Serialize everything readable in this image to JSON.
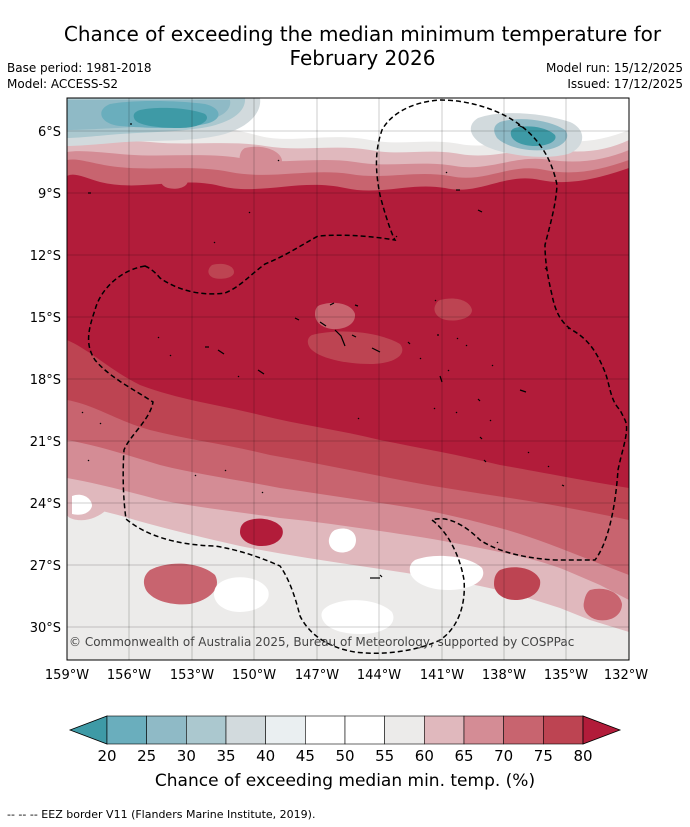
{
  "title_line1": "Chance of exceeding the median minimum temperature for",
  "title_line2": "February 2026",
  "base_period": "Base period: 1981-2018",
  "model": "Model: ACCESS-S2",
  "model_run": "Model run: 15/12/2025",
  "issued": "Issued: 17/12/2025",
  "copyright": "© Commonwealth of Australia 2025, Bureau of Meteorology, supported by COSPPac",
  "lon_ticks": [
    "159°W",
    "156°W",
    "153°W",
    "150°W",
    "147°W",
    "144°W",
    "141°W",
    "138°W",
    "135°W",
    "132°W"
  ],
  "lat_ticks": [
    "6°S",
    "9°S",
    "12°S",
    "15°S",
    "18°S",
    "21°S",
    "24°S",
    "27°S",
    "30°S"
  ],
  "colorbar": {
    "ticks": [
      "20",
      "25",
      "30",
      "35",
      "40",
      "45",
      "50",
      "55",
      "60",
      "65",
      "70",
      "75",
      "80"
    ],
    "colors": [
      "#3e9aa6",
      "#6aaebd",
      "#8fbac6",
      "#abc8cf",
      "#d2dadd",
      "#eaeff1",
      "#ffffff",
      "#ffffff",
      "#ecebea",
      "#e0b8bd",
      "#d48c95",
      "#c8646f",
      "#bd4452",
      "#b21c3a"
    ],
    "label": "Chance of exceeding median min. temp. (%)"
  },
  "legend_footer": "--  --  -- EEZ border V11 (Flanders Marine Institute, 2019)."
}
